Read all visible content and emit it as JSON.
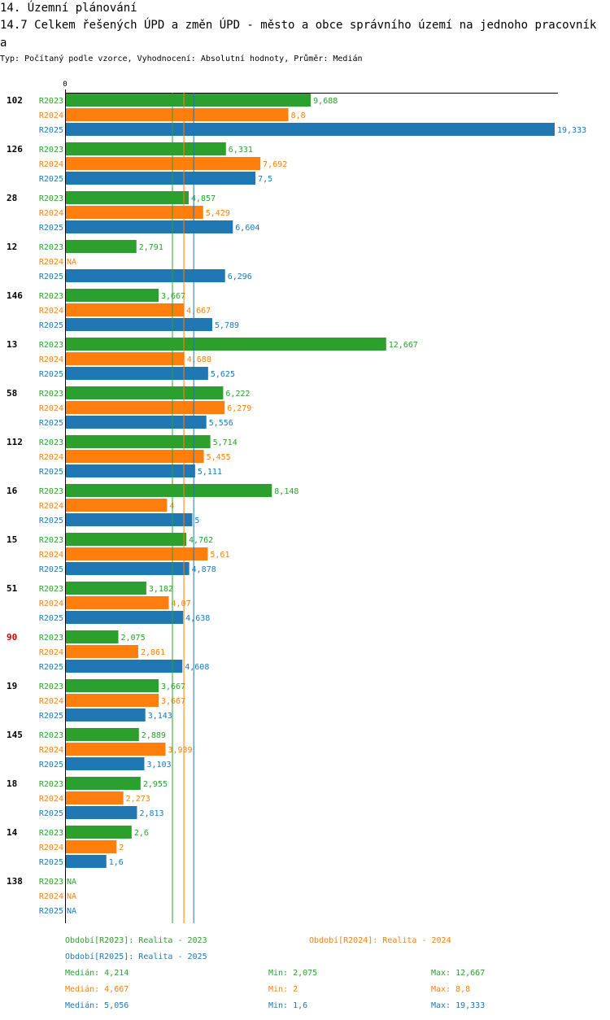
{
  "header": {
    "section": "14. Územní plánování",
    "title": "14.7 Celkem řešených ÚPD a změn ÚPD - město a obce správního území  na jednoho pracovníka",
    "subtitle": "Typ: Počítaný podle vzorce, Vyhodnocení: Absolutní hodnoty, Průměr: Medián"
  },
  "chart_data": {
    "type": "bar",
    "orientation": "horizontal",
    "xlim": [
      0,
      19.333
    ],
    "zero_label": "0",
    "categories": [
      "102",
      "126",
      "28",
      "12",
      "146",
      "13",
      "58",
      "112",
      "16",
      "15",
      "51",
      "90",
      "19",
      "145",
      "18",
      "14",
      "138"
    ],
    "highlighted_category": "90",
    "series": [
      {
        "name": "R2023",
        "color": "#2ca02c",
        "values": [
          9.688,
          6.331,
          4.857,
          2.791,
          3.667,
          12.667,
          6.222,
          5.714,
          8.148,
          4.762,
          3.182,
          2.075,
          3.667,
          2.889,
          2.955,
          2.6,
          null
        ],
        "labels": [
          "9,688",
          "6,331",
          "4,857",
          "2,791",
          "3,667",
          "12,667",
          "6,222",
          "5,714",
          "8,148",
          "4,762",
          "3,182",
          "2,075",
          "3,667",
          "2,889",
          "2,955",
          "2,6",
          "NA"
        ]
      },
      {
        "name": "R2024",
        "color": "#ff7f0e",
        "values": [
          8.8,
          7.692,
          5.429,
          null,
          4.667,
          4.688,
          6.279,
          5.455,
          4,
          5.61,
          4.07,
          2.861,
          3.667,
          3.939,
          2.273,
          2,
          null
        ],
        "labels": [
          "8,8",
          "7,692",
          "5,429",
          "NA",
          "4,667",
          "4,688",
          "6,279",
          "5,455",
          "4",
          "5,61",
          "4,07",
          "2,861",
          "3,667",
          "3,939",
          "2,273",
          "2",
          "NA"
        ]
      },
      {
        "name": "R2025",
        "color": "#1f77b4",
        "values": [
          19.333,
          7.5,
          6.604,
          6.296,
          5.789,
          5.625,
          5.556,
          5.111,
          5,
          4.878,
          4.638,
          4.608,
          3.143,
          3.103,
          2.813,
          1.6,
          null
        ],
        "labels": [
          "19,333",
          "7,5",
          "6,604",
          "6,296",
          "5,789",
          "5,625",
          "5,556",
          "5,111",
          "5",
          "4,878",
          "4,638",
          "4,608",
          "3,143",
          "3,103",
          "2,813",
          "1,6",
          "NA"
        ]
      }
    ],
    "medians": [
      4.214,
      4.667,
      5.056
    ]
  },
  "legend": {
    "r2023": "Období[R2023]: Realita - 2023",
    "r2024": "Období[R2024]: Realita - 2024",
    "r2025": "Období[R2025]: Realita - 2025"
  },
  "stats": [
    {
      "median": "Medián: 4,214",
      "min": "Min: 2,075",
      "max": "Max: 12,667"
    },
    {
      "median": "Medián: 4,667",
      "min": "Min: 2",
      "max": "Max: 8,8"
    },
    {
      "median": "Medián: 5,056",
      "min": "Min: 1,6",
      "max": "Max: 19,333"
    }
  ]
}
